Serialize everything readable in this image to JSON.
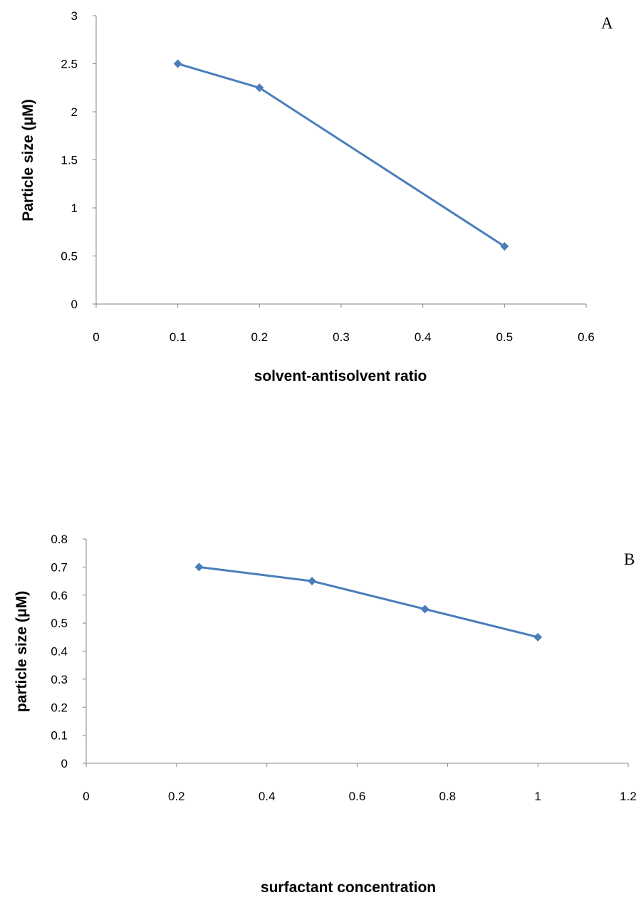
{
  "chart_data": [
    {
      "type": "line",
      "panel_label": "A",
      "xlabel": "solvent-antisolvent ratio",
      "ylabel": "Particle size (μM)",
      "xlim": [
        0,
        0.6
      ],
      "ylim": [
        0,
        3
      ],
      "x_ticks": [
        "0",
        "0.1",
        "0.2",
        "0.3",
        "0.4",
        "0.5",
        "0.6"
      ],
      "y_ticks": [
        "0",
        "0.5",
        "1",
        "1.5",
        "2",
        "2.5",
        "3"
      ],
      "series": [
        {
          "x": [
            0.1,
            0.2,
            0.5
          ],
          "y": [
            2.5,
            2.25,
            0.6
          ]
        }
      ],
      "color": "#4a7ebb",
      "grid": false,
      "legend": "none"
    },
    {
      "type": "line",
      "panel_label": "B",
      "xlabel": "surfactant concentration",
      "ylabel": "particle size (μM)",
      "xlim": [
        0,
        1.2
      ],
      "ylim": [
        0,
        0.8
      ],
      "x_ticks": [
        "0",
        "0.2",
        "0.4",
        "0.6",
        "0.8",
        "1",
        "1.2"
      ],
      "y_ticks": [
        "0",
        "0.1",
        "0.2",
        "0.3",
        "0.4",
        "0.5",
        "0.6",
        "0.7",
        "0.8"
      ],
      "series": [
        {
          "x": [
            0.25,
            0.5,
            0.75,
            1.0
          ],
          "y": [
            0.7,
            0.65,
            0.55,
            0.45
          ]
        }
      ],
      "color": "#4a7ebb",
      "grid": false,
      "legend": "none"
    }
  ]
}
